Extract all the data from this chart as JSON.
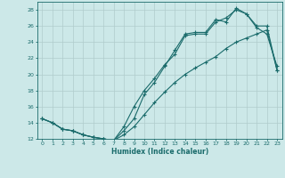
{
  "xlabel": "Humidex (Indice chaleur)",
  "bg_color": "#cce8e8",
  "grid_color": "#b0cccc",
  "line_color": "#1a6b6b",
  "xlim": [
    -0.5,
    23.5
  ],
  "ylim": [
    12,
    29
  ],
  "xticks": [
    0,
    1,
    2,
    3,
    4,
    5,
    6,
    7,
    8,
    9,
    10,
    11,
    12,
    13,
    14,
    15,
    16,
    17,
    18,
    19,
    20,
    21,
    22,
    23
  ],
  "yticks": [
    12,
    14,
    16,
    18,
    20,
    22,
    24,
    26,
    28
  ],
  "line1_x": [
    0,
    1,
    2,
    3,
    4,
    5,
    6,
    7,
    8,
    9,
    10,
    11,
    12,
    13,
    14,
    15,
    16,
    17,
    18,
    19,
    20,
    21,
    22,
    23
  ],
  "line1_y": [
    14.5,
    14.0,
    13.2,
    13.0,
    12.5,
    12.2,
    12.0,
    11.8,
    13.0,
    14.5,
    17.5,
    19.0,
    21.0,
    23.0,
    25.0,
    25.2,
    25.2,
    26.8,
    26.5,
    28.2,
    27.5,
    25.8,
    25.0,
    21.0
  ],
  "line2_x": [
    0,
    1,
    2,
    3,
    4,
    5,
    6,
    7,
    8,
    9,
    10,
    11,
    12,
    13,
    14,
    15,
    16,
    17,
    18,
    19,
    20,
    21,
    22,
    23
  ],
  "line2_y": [
    14.5,
    14.0,
    13.2,
    13.0,
    12.5,
    12.2,
    12.0,
    11.8,
    13.5,
    16.0,
    18.0,
    19.5,
    21.2,
    22.5,
    24.8,
    25.0,
    25.0,
    26.5,
    27.0,
    28.0,
    27.5,
    26.0,
    26.0,
    20.5
  ],
  "line3_x": [
    0,
    1,
    2,
    3,
    4,
    5,
    6,
    7,
    8,
    9,
    10,
    11,
    12,
    13,
    14,
    15,
    16,
    17,
    18,
    19,
    20,
    21,
    22,
    23
  ],
  "line3_y": [
    14.5,
    14.0,
    13.2,
    13.0,
    12.5,
    12.2,
    12.0,
    11.8,
    12.5,
    13.5,
    15.0,
    16.5,
    17.8,
    19.0,
    20.0,
    20.8,
    21.5,
    22.2,
    23.2,
    24.0,
    24.5,
    25.0,
    25.5,
    20.5
  ]
}
